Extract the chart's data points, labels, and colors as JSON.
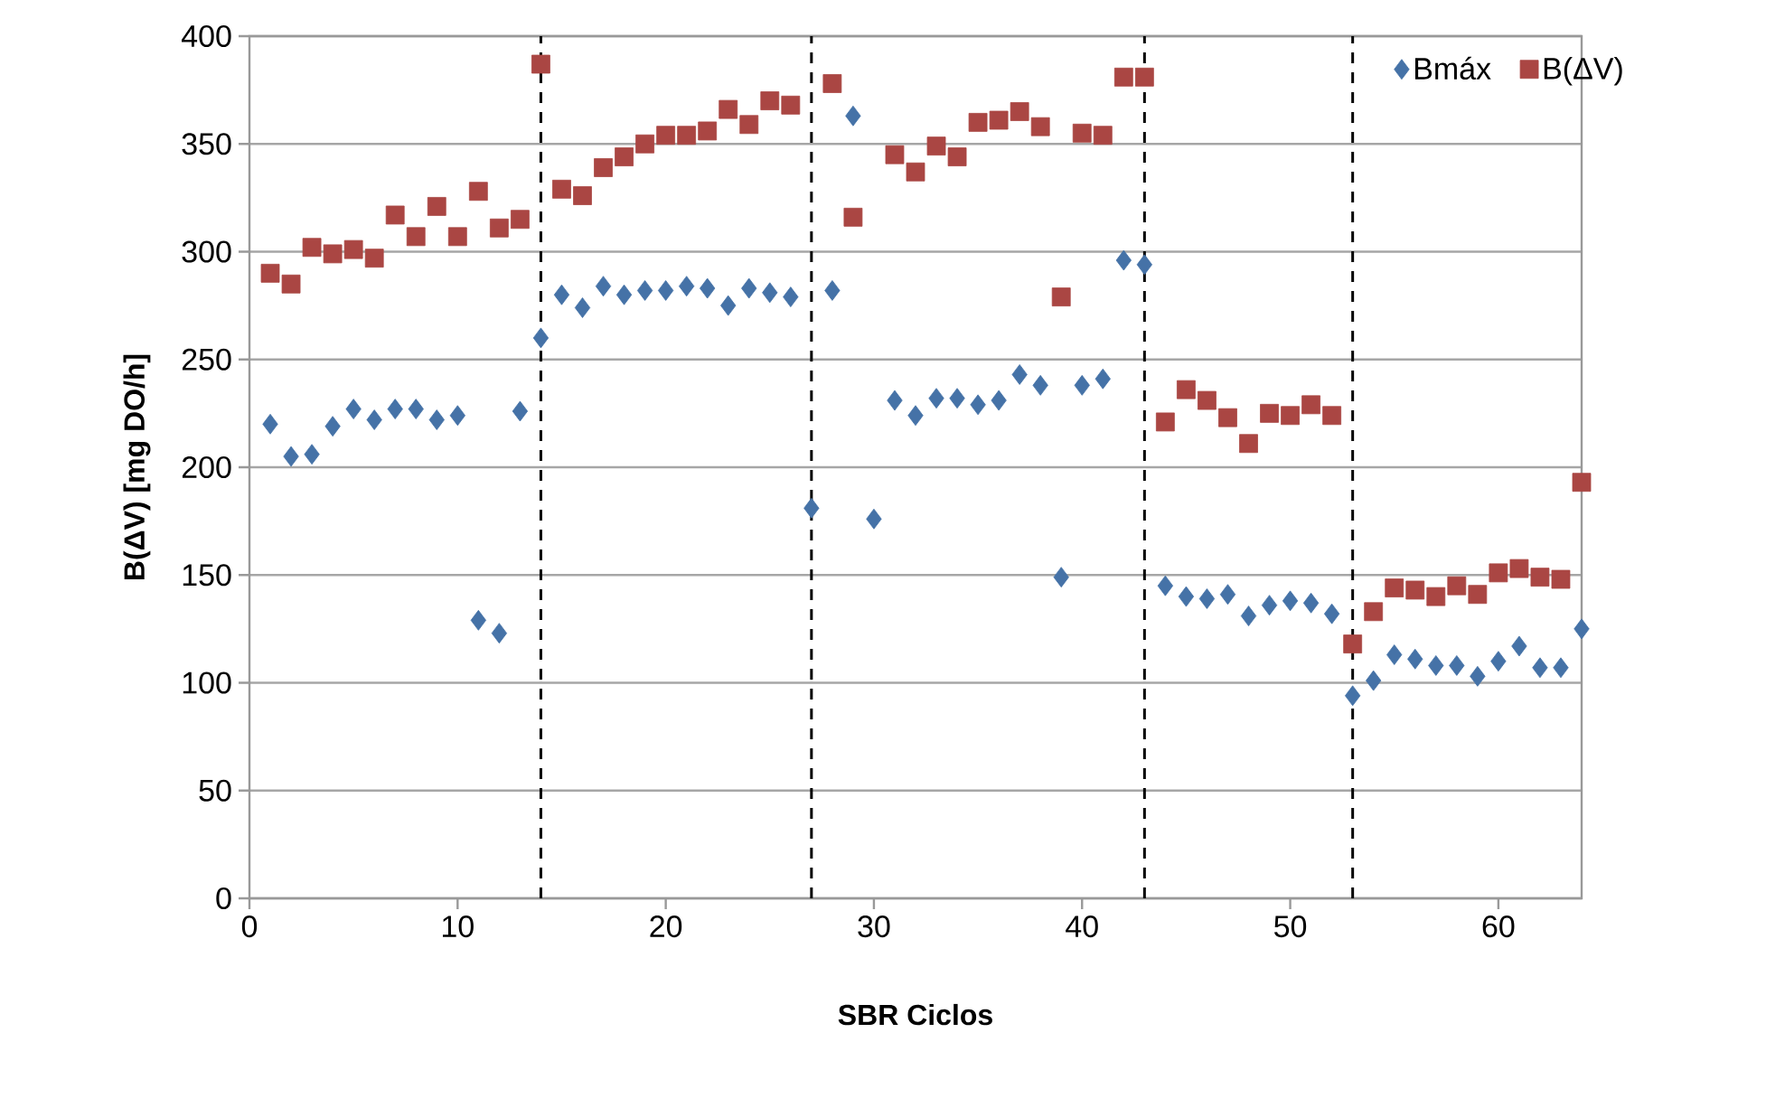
{
  "chart_data": {
    "type": "scatter",
    "xlabel": "SBR Ciclos",
    "ylabel": "B(ΔV) [mg DO/h]",
    "xlim": [
      0,
      64
    ],
    "xticks": [
      0,
      10,
      20,
      30,
      40,
      50,
      60
    ],
    "ylim": [
      0,
      400
    ],
    "yticks": [
      0,
      50,
      100,
      150,
      200,
      250,
      300,
      350,
      400
    ],
    "grid": "y",
    "legend": "top right",
    "x": [
      1,
      2,
      3,
      4,
      5,
      6,
      7,
      8,
      9,
      10,
      11,
      12,
      13,
      14,
      15,
      16,
      17,
      18,
      19,
      20,
      21,
      22,
      23,
      24,
      25,
      26,
      27,
      28,
      29,
      30,
      31,
      32,
      33,
      34,
      35,
      36,
      37,
      38,
      39,
      40,
      41,
      42,
      43,
      44,
      45,
      46,
      47,
      48,
      49,
      50,
      51,
      52,
      53,
      54,
      55,
      56,
      57,
      58,
      59,
      60,
      61,
      62,
      63,
      64
    ],
    "series": [
      {
        "name": "Bmáx",
        "color": "#4572a7",
        "marker": "diamond",
        "values": [
          220,
          205,
          206,
          219,
          227,
          222,
          227,
          227,
          222,
          224,
          129,
          123,
          226,
          260,
          280,
          274,
          284,
          280,
          282,
          282,
          284,
          283,
          275,
          283,
          281,
          279,
          181,
          282,
          363,
          176,
          231,
          224,
          232,
          232,
          229,
          231,
          243,
          238,
          149,
          238,
          241,
          296,
          294,
          145,
          140,
          139,
          141,
          131,
          136,
          138,
          137,
          132,
          94,
          101,
          113,
          111,
          108,
          108,
          103,
          110,
          117,
          107,
          107,
          125
        ]
      },
      {
        "name": "B(ΔV)",
        "color": "#aa4643",
        "marker": "square",
        "values": [
          290,
          285,
          302,
          299,
          301,
          297,
          317,
          307,
          321,
          307,
          328,
          311,
          315,
          387,
          329,
          326,
          339,
          344,
          350,
          354,
          354,
          356,
          366,
          359,
          370,
          368,
          null,
          378,
          316,
          null,
          345,
          337,
          349,
          344,
          360,
          361,
          365,
          358,
          279,
          355,
          354,
          381,
          381,
          221,
          236,
          231,
          223,
          211,
          225,
          224,
          229,
          224,
          118,
          133,
          144,
          143,
          140,
          145,
          141,
          151,
          153,
          149,
          148,
          193
        ]
      }
    ],
    "ref_lines": [
      {
        "axis": "x",
        "value": 14,
        "color": "#000000",
        "line_style": "dashed"
      },
      {
        "axis": "x",
        "value": 27,
        "color": "#000000",
        "line_style": "dashed"
      },
      {
        "axis": "x",
        "value": 43,
        "color": "#000000",
        "line_style": "dashed"
      },
      {
        "axis": "x",
        "value": 53,
        "color": "#000000",
        "line_style": "dashed"
      }
    ]
  }
}
